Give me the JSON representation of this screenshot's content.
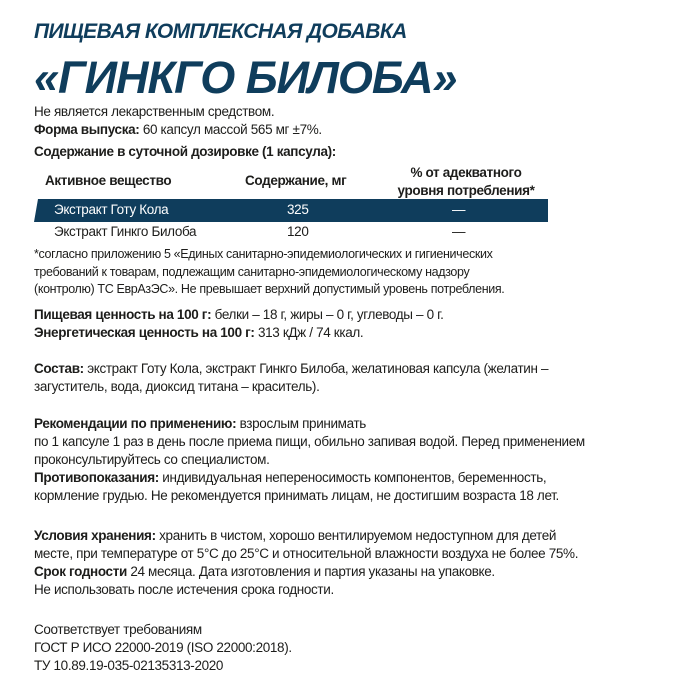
{
  "title": {
    "line1": "ПИЩЕВАЯ КОМПЛЕКСНАЯ ДОБАВКА",
    "line2": "«ГИНКГО БИЛОБА»"
  },
  "intro": {
    "not_medicine": "Не является лекарственным средством.",
    "form_label": "Форма выпуска:",
    "form_value": " 60 капсул массой 565 мг ±7%."
  },
  "table": {
    "caption": "Содержание в суточной дозировке (1 капсула):",
    "headers": [
      "Активное вещество",
      "Содержание, мг",
      "% от адекватного",
      "уровня потребления*"
    ],
    "rows": [
      {
        "name": "Экстракт Готу Кола",
        "amount": "325",
        "percent": "—"
      },
      {
        "name": "Экстракт Гинкго Билоба",
        "amount": "120",
        "percent": "—"
      }
    ],
    "footnote": [
      "*согласно приложению 5 «Единых санитарно-эпидемиологических и гигиенических",
      "требований к товарам, подлежащим санитарно-эпидемиологическому надзору",
      "(контролю) ТС ЕврАзЭС». Не превышает верхний допустимый уровень потребления."
    ]
  },
  "nutrition": {
    "label": "Пищевая ценность на 100 г:",
    "value": " белки – 18 г, жиры – 0 г, углеводы – 0 г.",
    "energy_label": "Энергетическая ценность на 100 г:",
    "energy_value": " 313 кДж / 74 ккал."
  },
  "composition": {
    "label": "Состав:",
    "line1": " экстракт Готу Кола, экстракт Гинкго Билоба, желатиновая капсула (желатин –",
    "line2": "загуститель, вода, диоксид титана – краситель)."
  },
  "usage": {
    "label": "Рекомендации по применению:",
    "line1": " взрослым принимать",
    "line2": "по 1 капсуле 1 раз в день после приема пищи, обильно запивая водой. Перед применением",
    "line3": "проконсультируйтесь со специалистом.",
    "contra_label": "Противопоказания:",
    "contra1": " индивидуальная непереносимость компонентов, беременность,",
    "contra2": "кормление грудью. Не рекомендуется принимать лицам, не достигшим возраста 18 лет."
  },
  "storage": {
    "label": "Условия хранения:",
    "line1": " хранить в чистом, хорошо вентилируемом недоступном для детей",
    "line2": "месте, при температуре от 5°С до 25°С и относительной влажности воздуха не более 75%.",
    "shelf_label": "Срок годности",
    "shelf_value": " 24 месяца. Дата изготовления и партия указаны на упаковке.",
    "line4": "Не использовать после истечения срока годности."
  },
  "standards": [
    "Соответствует требованиям",
    "ГОСТ Р ИСО 22000-2019 (ISO 22000:2018).",
    "ТУ 10.89.19-035-02135313-2020"
  ],
  "colors": {
    "brand": "#0f3d5c",
    "text": "#1d1d1b"
  }
}
